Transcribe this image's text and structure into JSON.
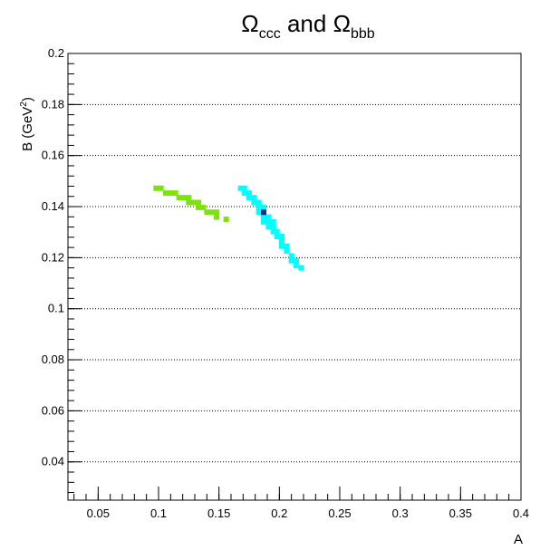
{
  "chart_data": {
    "type": "scatter",
    "title_parts": {
      "omega": "Ω",
      "ccc": "ccc",
      "and": " and ",
      "bbb": "bbb"
    },
    "xlabel": "A",
    "ylabel_main": "B (GeV",
    "ylabel_sup": "2",
    "ylabel_close": ")",
    "xlim": [
      0.025,
      0.4
    ],
    "ylim": [
      0.025,
      0.2
    ],
    "grid": "horizontal-dotted",
    "x_ticks": [
      {
        "value": 0.05,
        "label": "0.05"
      },
      {
        "value": 0.1,
        "label": "0.1"
      },
      {
        "value": 0.15,
        "label": "0.15"
      },
      {
        "value": 0.2,
        "label": "0.2"
      },
      {
        "value": 0.25,
        "label": "0.25"
      },
      {
        "value": 0.3,
        "label": "0.3"
      },
      {
        "value": 0.35,
        "label": "0.35"
      },
      {
        "value": 0.4,
        "label": "0.4"
      }
    ],
    "y_ticks": [
      {
        "value": 0.04,
        "label": "0.04"
      },
      {
        "value": 0.06,
        "label": "0.06"
      },
      {
        "value": 0.08,
        "label": "0.08"
      },
      {
        "value": 0.1,
        "label": "0.1"
      },
      {
        "value": 0.12,
        "label": "0.12"
      },
      {
        "value": 0.14,
        "label": "0.14"
      },
      {
        "value": 0.16,
        "label": "0.16"
      },
      {
        "value": 0.18,
        "label": "0.18"
      },
      {
        "value": 0.2,
        "label": "0.2"
      }
    ],
    "series": [
      {
        "color": "#7fe20f",
        "points": [
          [
            0.098,
            0.1472
          ],
          [
            0.102,
            0.1472
          ],
          [
            0.106,
            0.1453
          ],
          [
            0.11,
            0.1453
          ],
          [
            0.114,
            0.1453
          ],
          [
            0.117,
            0.1435
          ],
          [
            0.121,
            0.1435
          ],
          [
            0.125,
            0.1435
          ],
          [
            0.125,
            0.1416
          ],
          [
            0.129,
            0.1416
          ],
          [
            0.133,
            0.1416
          ],
          [
            0.133,
            0.1397
          ],
          [
            0.137,
            0.1397
          ],
          [
            0.14,
            0.1378
          ],
          [
            0.144,
            0.1378
          ],
          [
            0.148,
            0.1378
          ],
          [
            0.148,
            0.1359
          ],
          [
            0.156,
            0.135
          ]
        ]
      },
      {
        "color": "#00ffff",
        "points": [
          [
            0.168,
            0.1472
          ],
          [
            0.171,
            0.1453
          ],
          [
            0.171,
            0.1472
          ],
          [
            0.175,
            0.1435
          ],
          [
            0.175,
            0.1453
          ],
          [
            0.179,
            0.1416
          ],
          [
            0.179,
            0.1435
          ],
          [
            0.183,
            0.1397
          ],
          [
            0.183,
            0.1416
          ],
          [
            0.183,
            0.1378
          ],
          [
            0.187,
            0.1397
          ],
          [
            0.187,
            0.1359
          ],
          [
            0.187,
            0.134
          ],
          [
            0.191,
            0.1359
          ],
          [
            0.191,
            0.134
          ],
          [
            0.191,
            0.1321
          ],
          [
            0.195,
            0.134
          ],
          [
            0.195,
            0.1321
          ],
          [
            0.195,
            0.1302
          ],
          [
            0.198,
            0.1302
          ],
          [
            0.198,
            0.1283
          ],
          [
            0.202,
            0.1283
          ],
          [
            0.202,
            0.1264
          ],
          [
            0.202,
            0.1245
          ],
          [
            0.206,
            0.1245
          ],
          [
            0.206,
            0.1226
          ],
          [
            0.21,
            0.1207
          ],
          [
            0.21,
            0.1188
          ],
          [
            0.214,
            0.1188
          ],
          [
            0.214,
            0.1169
          ],
          [
            0.218,
            0.116
          ]
        ]
      },
      {
        "color": "#1a2a8a",
        "points": [
          [
            0.187,
            0.1378
          ]
        ]
      }
    ]
  }
}
